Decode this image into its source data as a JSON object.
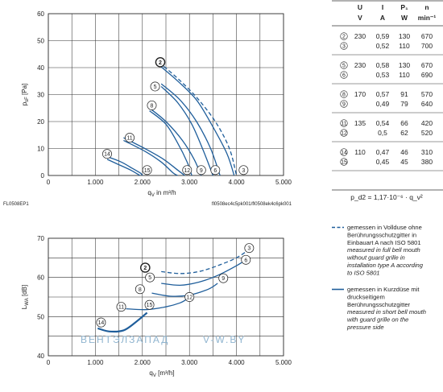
{
  "chart_data": [
    {
      "type": "line",
      "xlabel": "q",
      "xlabel_sub": "V",
      "xlabel_unit": "in m³/h",
      "ylabel": "p",
      "ylabel_sub": "sF",
      "ylabel_unit": "[Pa]",
      "xlim": [
        0,
        5000
      ],
      "ylim": [
        0,
        60
      ],
      "x_ticks": [
        "0",
        "1.000",
        "2.000",
        "3.000",
        "4.000",
        "5.000"
      ],
      "y_ticks": [
        "0",
        "10",
        "20",
        "30",
        "40",
        "50",
        "60"
      ],
      "grid": true,
      "footer_left": "FL0508EP1",
      "footer_right": "fl0508ec4c5pk001/fl0508ek4c6pk001",
      "series": [
        {
          "marker": "2",
          "dashed": true,
          "start": [
            2350,
            42
          ],
          "x": [
            2350,
            2750,
            3150,
            3550,
            3850,
            4000
          ],
          "y": [
            42,
            36,
            29,
            20,
            10,
            0
          ]
        },
        {
          "marker": "3",
          "dashed": false,
          "x": [
            2350,
            2750,
            3150,
            3500,
            3800,
            3950
          ],
          "y": [
            41,
            35,
            28,
            18,
            8,
            0
          ]
        },
        {
          "marker": "5",
          "dashed": false,
          "x": [
            2400,
            2800,
            3150,
            3450,
            3650
          ],
          "y": [
            34,
            28,
            20,
            10,
            0
          ]
        },
        {
          "marker": "6",
          "dashed": false,
          "x": [
            2400,
            2750,
            3050,
            3300,
            3500
          ],
          "y": [
            33,
            27,
            19,
            9,
            0
          ]
        },
        {
          "marker": "8",
          "dashed": false,
          "x": [
            2150,
            2500,
            2850,
            3100,
            3250
          ],
          "y": [
            25,
            20,
            13,
            6,
            0
          ]
        },
        {
          "marker": "9",
          "dashed": false,
          "x": [
            2150,
            2500,
            2750,
            2950,
            3050
          ],
          "y": [
            24,
            19,
            12,
            5,
            0
          ]
        },
        {
          "marker": "11",
          "dashed": false,
          "x": [
            1600,
            2050,
            2450,
            2750,
            2900
          ],
          "y": [
            14,
            10,
            6,
            2,
            0
          ]
        },
        {
          "marker": "12",
          "dashed": false,
          "x": [
            1600,
            2050,
            2400,
            2650,
            2750
          ],
          "y": [
            13,
            9,
            5,
            1,
            0
          ]
        },
        {
          "marker": "14",
          "dashed": false,
          "x": [
            1250,
            1550,
            1800,
            1950,
            2000
          ],
          "y": [
            7,
            5,
            2.5,
            1,
            0
          ]
        },
        {
          "marker": "15",
          "dashed": false,
          "x": [
            1250,
            1500,
            1750,
            1900,
            1950
          ],
          "y": [
            6,
            4,
            2,
            0.5,
            0
          ]
        }
      ],
      "markers": [
        {
          "label": "2",
          "x": 2380,
          "y": 42,
          "bold": true
        },
        {
          "label": "5",
          "x": 2270,
          "y": 33
        },
        {
          "label": "8",
          "x": 2200,
          "y": 26
        },
        {
          "label": "11",
          "x": 1730,
          "y": 14
        },
        {
          "label": "14",
          "x": 1250,
          "y": 8
        },
        {
          "label": "15",
          "x": 2100,
          "y": 2
        },
        {
          "label": "12",
          "x": 2950,
          "y": 2
        },
        {
          "label": "9",
          "x": 3250,
          "y": 2
        },
        {
          "label": "6",
          "x": 3550,
          "y": 2
        },
        {
          "label": "3",
          "x": 4150,
          "y": 2
        }
      ]
    },
    {
      "type": "line",
      "xlabel": "q",
      "xlabel_sub": "V",
      "xlabel_unit": "[m³/h]",
      "ylabel": "L",
      "ylabel_sub": "WA",
      "ylabel_unit": "[dB]",
      "xlim": [
        0,
        5000
      ],
      "ylim": [
        40,
        70
      ],
      "x_ticks": [
        "0",
        "1.000",
        "2.000",
        "3.000",
        "4.000",
        "5.000"
      ],
      "y_ticks": [
        "40",
        "50",
        "60",
        "70"
      ],
      "grid": true,
      "series": [
        {
          "marker": "2-3",
          "dashed": true,
          "x": [
            2400,
            2800,
            3200,
            3600,
            4000,
            4250
          ],
          "y": [
            61.5,
            61,
            61.5,
            63,
            65,
            67
          ]
        },
        {
          "marker": "5-6",
          "dashed": false,
          "x": [
            2400,
            2800,
            3200,
            3600,
            4000,
            4200
          ],
          "y": [
            58.5,
            58,
            58.8,
            60.5,
            63,
            64.5
          ]
        },
        {
          "marker": "8-9",
          "dashed": false,
          "x": [
            2200,
            2600,
            3000,
            3400,
            3600
          ],
          "y": [
            56,
            55.2,
            55.5,
            57,
            58.5
          ]
        },
        {
          "marker": "11-12",
          "dashed": false,
          "x": [
            1650,
            2100,
            2500,
            2800,
            2950
          ],
          "y": [
            52,
            51.8,
            52.5,
            53.5,
            54.5
          ]
        },
        {
          "marker": "14-15",
          "dashed": false,
          "x": [
            1050,
            1300,
            1600,
            1850,
            2100
          ],
          "y": [
            47,
            46.2,
            46.5,
            48.5,
            51
          ],
          "bold": true
        }
      ],
      "markers": [
        {
          "label": "3",
          "x": 4270,
          "y": 67.5
        },
        {
          "label": "6",
          "x": 4200,
          "y": 64.5
        },
        {
          "label": "9",
          "x": 3720,
          "y": 59.8
        },
        {
          "label": "12",
          "x": 3000,
          "y": 55
        },
        {
          "label": "15",
          "x": 2150,
          "y": 53
        },
        {
          "label": "2",
          "x": 2060,
          "y": 62.5,
          "bold": true
        },
        {
          "label": "5",
          "x": 2160,
          "y": 60
        },
        {
          "label": "8",
          "x": 1950,
          "y": 57
        },
        {
          "label": "11",
          "x": 1550,
          "y": 52.5
        },
        {
          "label": "14",
          "x": 1120,
          "y": 48.5
        }
      ]
    }
  ],
  "table": {
    "headers": [
      "U",
      "I",
      "P₁",
      "n"
    ],
    "units": [
      "V",
      "A",
      "W",
      "min⁻¹"
    ],
    "rows": [
      {
        "marks": [
          "2",
          "3"
        ],
        "U": "230",
        "I": [
          "0,59",
          "0,52"
        ],
        "P": [
          "130",
          "110"
        ],
        "n": [
          "670",
          "700"
        ]
      },
      {
        "marks": [
          "5",
          "6"
        ],
        "U": "230",
        "I": [
          "0,58",
          "0,53"
        ],
        "P": [
          "130",
          "110"
        ],
        "n": [
          "670",
          "690"
        ]
      },
      {
        "marks": [
          "8",
          "9"
        ],
        "U": "170",
        "I": [
          "0,57",
          "0,49"
        ],
        "P": [
          "91",
          "79"
        ],
        "n": [
          "570",
          "640"
        ]
      },
      {
        "marks": [
          "11",
          "12"
        ],
        "U": "135",
        "I": [
          "0,54",
          "0,5"
        ],
        "P": [
          "66",
          "62"
        ],
        "n": [
          "420",
          "520"
        ]
      },
      {
        "marks": [
          "14",
          "15"
        ],
        "U": "110",
        "I": [
          "0,47",
          "0,45"
        ],
        "P": [
          "46",
          "45"
        ],
        "n": [
          "310",
          "380"
        ]
      }
    ],
    "formula": "p_d2 = 1,17·10⁻⁶ · q_v²"
  },
  "legend": {
    "dashed": {
      "de": "gemessen in Vollduse ohne Berührungsschutzgitter in Einbauart A nach ISO 5801",
      "en": "measured in full bell mouth without guard grille in installation type A according to ISO 5801"
    },
    "solid": {
      "de": "gemessen in Kurzdüse mit druckseitigem Berührungsschutzgitter",
      "en": "measured in short bell mouth with guard grille on the pressure side"
    }
  },
  "watermark": {
    "left": "ВЕНТЭЛЗАПАД",
    "right": "V-W.BY"
  },
  "colors": {
    "curve": "#1f5e9b",
    "grid": "#333333",
    "text": "#1a1a1a",
    "watermark": "#8fb4cf"
  }
}
